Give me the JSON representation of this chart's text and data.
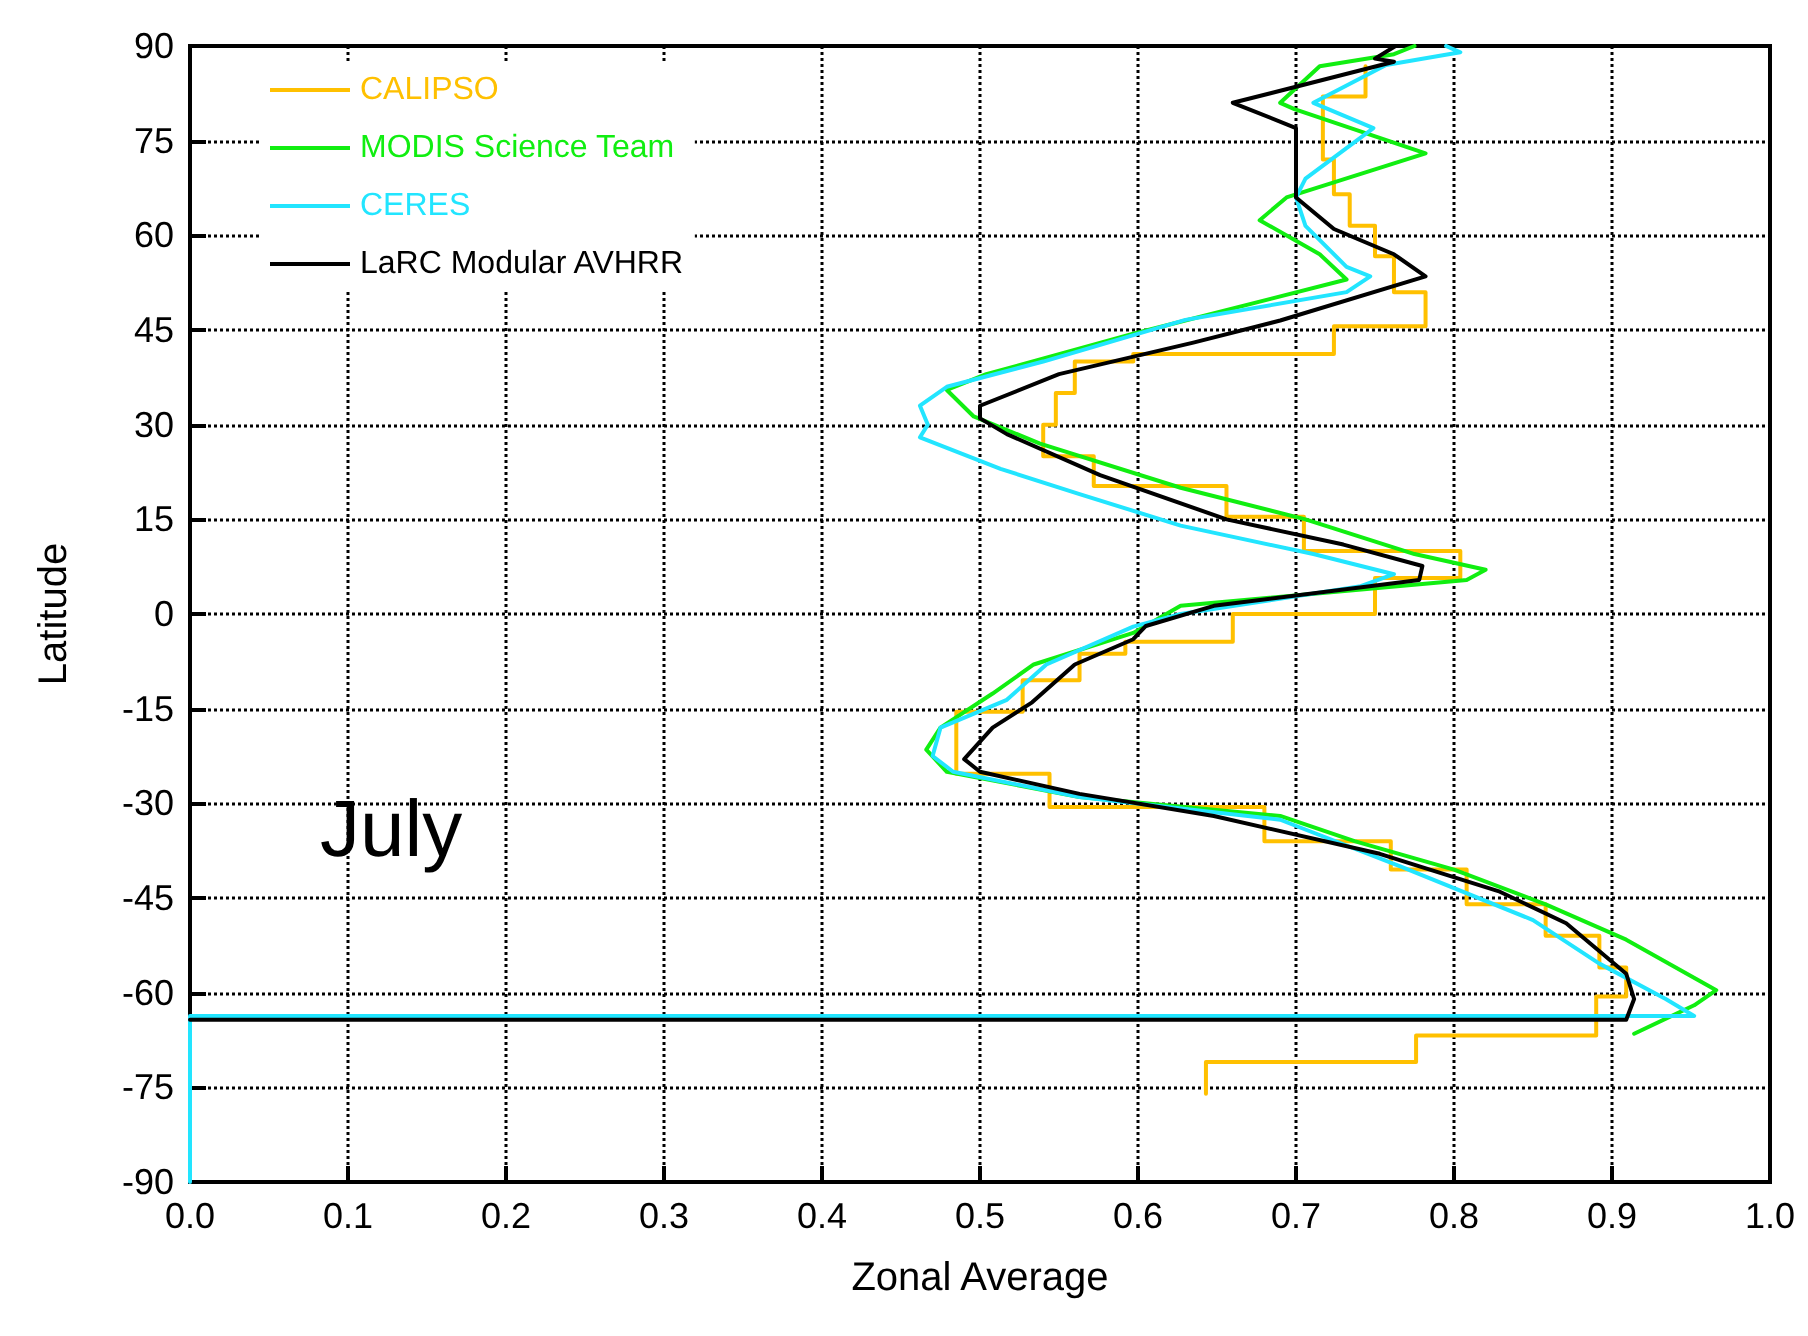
{
  "chart_data": {
    "type": "line",
    "xlabel": "Zonal Average",
    "ylabel": "Latitude",
    "annotations": [
      "July"
    ],
    "xlim": [
      0,
      1
    ],
    "xticks": [
      {
        "value": 0,
        "label": "0.0"
      },
      0.1,
      0.2,
      0.3,
      0.4,
      0.5,
      0.6,
      0.7,
      0.8,
      0.9,
      {
        "value": 1,
        "label": "1.0"
      }
    ],
    "ylim": [
      -90,
      90
    ],
    "yticks": [
      -90,
      -75,
      -60,
      -45,
      -30,
      -15,
      0,
      15,
      30,
      45,
      60,
      75,
      90
    ],
    "grid": true,
    "legend": "top left",
    "marker": "none",
    "line_style": "solid",
    "series": [
      {
        "name": "CALIPSO",
        "color": "#ffc000",
        "x": [
          0.744,
          0.744,
          0.717,
          0.717,
          0.724,
          0.724,
          0.734,
          0.734,
          0.75,
          0.75,
          0.762,
          0.762,
          0.782,
          0.782,
          0.724,
          0.724,
          0.597,
          0.597,
          0.56,
          0.56,
          0.548,
          0.548,
          0.54,
          0.54,
          0.572,
          0.572,
          0.656,
          0.656,
          0.705,
          0.705,
          0.804,
          0.804,
          0.75,
          0.75,
          0.66,
          0.66,
          0.592,
          0.592,
          0.563,
          0.563,
          0.527,
          0.527,
          0.485,
          0.485,
          0.544,
          0.544,
          0.68,
          0.68,
          0.76,
          0.76,
          0.808,
          0.808,
          0.858,
          0.858,
          0.892,
          0.892,
          0.909,
          0.909,
          0.89,
          0.89,
          0.776,
          0.776,
          0.643,
          0.643
        ],
        "values": [
          86.8,
          82,
          82,
          72,
          72,
          66.5,
          66.5,
          61.5,
          61.5,
          56.7,
          56.7,
          51,
          51,
          45.6,
          45.6,
          41.2,
          41.2,
          40,
          40,
          35,
          35,
          30,
          30,
          25,
          25,
          20.3,
          20.3,
          15.4,
          15.4,
          10,
          10,
          5.7,
          5.7,
          0,
          0,
          -4.4,
          -4.4,
          -6.3,
          -6.3,
          -10.5,
          -10.5,
          -15.5,
          -15.5,
          -25.3,
          -25.3,
          -30.6,
          -30.6,
          -36,
          -36,
          -40.5,
          -40.5,
          -46,
          -46,
          -51,
          -51,
          -56,
          -56,
          -60.6,
          -60.6,
          -66.8,
          -66.8,
          -71,
          -71,
          -76
        ]
      },
      {
        "name": "MODIS Science Team",
        "color": "#11ee11",
        "x": [
          0.775,
          0.762,
          0.715,
          0.69,
          0.699,
          0.782,
          0.694,
          0.677,
          0.715,
          0.732,
          0.597,
          0.504,
          0.479,
          0.496,
          0.538,
          0.627,
          0.706,
          0.775,
          0.82,
          0.808,
          0.627,
          0.597,
          0.534,
          0.508,
          0.475,
          0.466,
          0.479,
          0.563,
          0.69,
          0.737,
          0.8,
          0.858,
          0.909,
          0.966,
          0.952,
          0.914
        ],
        "values": [
          90,
          88.7,
          86.8,
          81,
          80,
          73,
          66,
          62.4,
          57,
          53,
          44.4,
          38,
          35.5,
          31.3,
          27,
          20,
          15,
          9.5,
          7,
          5.4,
          1.3,
          -3,
          -8,
          -12.6,
          -18,
          -21.5,
          -25,
          -29,
          -32,
          -36,
          -40.5,
          -46,
          -51.6,
          -59.6,
          -62,
          -66.5
        ]
      },
      {
        "name": "CERES",
        "color": "#22e5ff",
        "x": [
          0.795,
          0.804,
          0.757,
          0.711,
          0.749,
          0.706,
          0.7,
          0.706,
          0.732,
          0.747,
          0.732,
          0.63,
          0.54,
          0.479,
          0.462,
          0.467,
          0.462,
          0.513,
          0.563,
          0.627,
          0.711,
          0.762,
          0.741,
          0.627,
          0.597,
          0.542,
          0.517,
          0.475,
          0.47,
          0.483,
          0.563,
          0.69,
          0.766,
          0.85,
          0.892,
          0.934,
          0.952,
          0,
          0
        ],
        "values": [
          90,
          89,
          87,
          81,
          77,
          69,
          66,
          61.5,
          55,
          53.5,
          51,
          46.6,
          40,
          36,
          33,
          30,
          28,
          23,
          19,
          14,
          9.5,
          6.3,
          4.4,
          0,
          -2,
          -8,
          -13.6,
          -18,
          -22.5,
          -25,
          -29,
          -32.6,
          -40,
          -48.5,
          -55.4,
          -61,
          -63.7,
          -63.7,
          -90
        ]
      },
      {
        "name": "LaRC Modular AVHRR",
        "color": "#000000",
        "x": [
          0.763,
          0.75,
          0.762,
          0.66,
          0.7,
          0.7,
          0.724,
          0.762,
          0.782,
          0.69,
          0.635,
          0.55,
          0.5,
          0.5,
          0.517,
          0.576,
          0.656,
          0.73,
          0.78,
          0.778,
          0.648,
          0.605,
          0.597,
          0.56,
          0.533,
          0.508,
          0.49,
          0.5,
          0.563,
          0.648,
          0.753,
          0.829,
          0.871,
          0.909,
          0.914,
          0.909,
          0
        ],
        "values": [
          90,
          88,
          87.5,
          81,
          77,
          66,
          61,
          57,
          53.5,
          46.5,
          43,
          38,
          33,
          31,
          28.5,
          22,
          15,
          11,
          7.6,
          5.4,
          1.3,
          -1.9,
          -4,
          -8,
          -14,
          -18,
          -23,
          -25,
          -28.5,
          -32,
          -38,
          -44,
          -49,
          -57,
          -61,
          -64.3,
          -64.3
        ]
      }
    ]
  }
}
